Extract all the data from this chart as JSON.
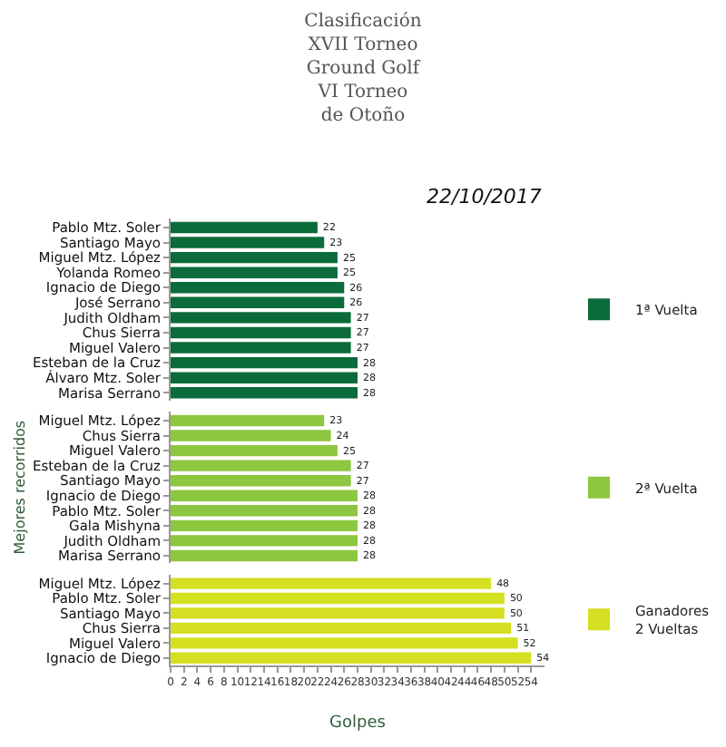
{
  "chart_data": [
    {
      "type": "bar",
      "orientation": "horizontal",
      "title": "Clasificación\nXVII Torneo\nGround Golf\nVI Torneo\nde Otoño",
      "annotations": [
        "22/10/2017"
      ],
      "tick_labels": "y",
      "data_labels": true,
      "legend": "right",
      "categories": [
        "Pablo Mtz. Soler",
        "Santiago Mayo",
        "Miguel Mtz. López",
        "Yolanda Romeo",
        "Ignacio de Diego",
        "José Serrano",
        "Judith Oldham",
        "Chus Sierra",
        "Miguel Valero",
        "Esteban de la Cruz",
        "Álvaro Mtz. Soler",
        "Marisa Serrano"
      ],
      "series": [
        {
          "name": "1ª Vuelta",
          "color": "#0b6b3a",
          "values": [
            22,
            23,
            25,
            25,
            26,
            26,
            27,
            27,
            27,
            28,
            28,
            28
          ]
        }
      ]
    },
    {
      "type": "bar",
      "orientation": "horizontal",
      "ylabel": "Mejores recorridos",
      "tick_labels": "y",
      "data_labels": true,
      "legend": "right",
      "categories": [
        "Miguel Mtz. López",
        "Chus Sierra",
        "Miguel Valero",
        "Esteban de la Cruz",
        "Santiago Mayo",
        "Ignacio de Diego",
        "Pablo Mtz. Soler",
        "Gala Mishyna",
        "Judith Oldham",
        "Marisa Serrano"
      ],
      "series": [
        {
          "name": "2ª Vuelta",
          "color": "#8dc63f",
          "values": [
            23,
            24,
            25,
            27,
            27,
            28,
            28,
            28,
            28,
            28
          ]
        }
      ]
    },
    {
      "type": "bar",
      "orientation": "horizontal",
      "xlabel": "Golpes",
      "xlim": [
        0,
        56
      ],
      "xticks": [
        0,
        2,
        4,
        6,
        8,
        10,
        12,
        14,
        16,
        18,
        20,
        22,
        24,
        26,
        28,
        30,
        32,
        34,
        36,
        38,
        40,
        42,
        44,
        46,
        48,
        50,
        52,
        54
      ],
      "data_labels": true,
      "legend": "right",
      "categories": [
        "Miguel Mtz. López",
        "Pablo Mtz. Soler",
        "Santiago Mayo",
        "Chus Sierra",
        "Miguel Valero",
        "Ignacio de Diego"
      ],
      "series": [
        {
          "name": "Ganadores\n2 Vueltas",
          "color": "#d4e021",
          "values": [
            48,
            50,
            50,
            51,
            52,
            54
          ]
        }
      ]
    }
  ]
}
